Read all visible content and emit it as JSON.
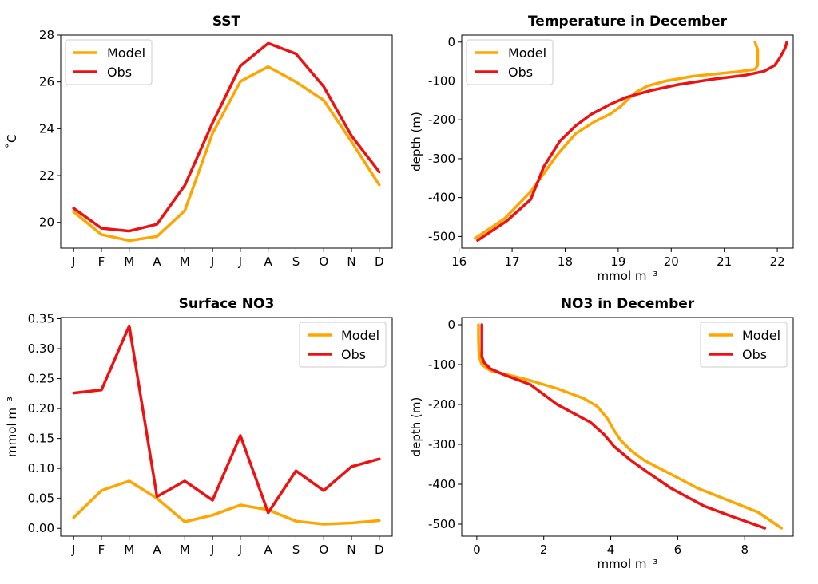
{
  "colors": {
    "model": "#FFA500",
    "obs": "#EE1111"
  },
  "chart_data": [
    {
      "type": "line",
      "title": "SST",
      "xlabel": "",
      "ylabel": "˚C",
      "x": [
        "J",
        "F",
        "M",
        "A",
        "M",
        "J",
        "J",
        "A",
        "S",
        "O",
        "N",
        "D"
      ],
      "ylim": [
        18.9,
        28.0
      ],
      "yticks": [
        "20",
        "22",
        "24",
        "26",
        "28"
      ],
      "legend": "top-left",
      "series": [
        {
          "name": "Model",
          "values": [
            20.45,
            19.48,
            19.22,
            19.4,
            20.5,
            23.8,
            26.02,
            26.65,
            26.0,
            25.22,
            23.45,
            21.6
          ]
        },
        {
          "name": "Obs",
          "values": [
            20.6,
            19.75,
            19.63,
            19.92,
            21.58,
            24.25,
            26.68,
            27.65,
            27.2,
            25.8,
            23.7,
            22.15
          ]
        }
      ]
    },
    {
      "type": "line",
      "title": "Temperature in December",
      "xlabel": "mmol m⁻³",
      "ylabel": "depth (m)",
      "xlim": [
        16.05,
        22.3
      ],
      "ylim": [
        -530,
        18
      ],
      "xticks": [
        "16",
        "17",
        "18",
        "19",
        "20",
        "21",
        "22"
      ],
      "yticks": [
        "0",
        "-100",
        "-200",
        "-300",
        "-400",
        "-500"
      ],
      "legend": "top-left",
      "series": [
        {
          "name": "Model",
          "x": [
            21.58,
            21.63,
            21.63,
            21.58,
            21.2,
            20.4,
            19.9,
            19.55,
            19.35,
            19.2,
            19.05,
            18.85,
            18.55,
            18.2,
            17.85,
            17.35,
            16.85,
            16.3
          ],
          "y": [
            0,
            -20,
            -60,
            -70,
            -77,
            -88,
            -100,
            -113,
            -128,
            -145,
            -165,
            -185,
            -205,
            -235,
            -290,
            -385,
            -455,
            -505
          ]
        },
        {
          "name": "Obs",
          "x": [
            22.18,
            22.15,
            22.05,
            21.95,
            21.75,
            21.4,
            20.8,
            20.1,
            19.6,
            19.15,
            18.85,
            18.5,
            18.2,
            17.9,
            17.6,
            17.35,
            16.9,
            16.35
          ],
          "y": [
            0,
            -15,
            -40,
            -60,
            -75,
            -85,
            -95,
            -110,
            -125,
            -142,
            -160,
            -185,
            -215,
            -255,
            -320,
            -405,
            -460,
            -510
          ]
        }
      ]
    },
    {
      "type": "line",
      "title": "Surface NO3",
      "xlabel": "",
      "ylabel": "mmol m⁻³",
      "x": [
        "J",
        "F",
        "M",
        "A",
        "M",
        "J",
        "J",
        "A",
        "S",
        "O",
        "N",
        "D"
      ],
      "ylim": [
        -0.013,
        0.352
      ],
      "yticks": [
        "0.00",
        "0.05",
        "0.10",
        "0.15",
        "0.20",
        "0.25",
        "0.30",
        "0.35"
      ],
      "legend": "top-right",
      "series": [
        {
          "name": "Model",
          "values": [
            0.018,
            0.063,
            0.079,
            0.05,
            0.011,
            0.022,
            0.039,
            0.031,
            0.012,
            0.007,
            0.009,
            0.013
          ]
        },
        {
          "name": "Obs",
          "values": [
            0.226,
            0.231,
            0.338,
            0.053,
            0.079,
            0.047,
            0.155,
            0.026,
            0.096,
            0.063,
            0.103,
            0.116
          ]
        }
      ]
    },
    {
      "type": "line",
      "title": "NO3 in December",
      "xlabel": "mmol m⁻³",
      "ylabel": "depth (m)",
      "xlim": [
        -0.45,
        9.45
      ],
      "ylim": [
        -530,
        18
      ],
      "xticks": [
        "0",
        "2",
        "4",
        "6",
        "8"
      ],
      "yticks": [
        "0",
        "-100",
        "-200",
        "-300",
        "-400",
        "-500"
      ],
      "legend": "top-right",
      "series": [
        {
          "name": "Model",
          "x": [
            0.05,
            0.05,
            0.07,
            0.15,
            0.4,
            0.9,
            1.6,
            2.4,
            3.2,
            3.6,
            3.9,
            4.1,
            4.3,
            4.6,
            5.0,
            5.8,
            6.6,
            7.5,
            8.4,
            9.1
          ],
          "y": [
            0,
            -40,
            -80,
            -100,
            -115,
            -125,
            -140,
            -160,
            -185,
            -205,
            -235,
            -265,
            -290,
            -315,
            -340,
            -375,
            -410,
            -440,
            -470,
            -510
          ]
        },
        {
          "name": "Obs",
          "x": [
            0.15,
            0.15,
            0.15,
            0.22,
            0.4,
            0.8,
            1.6,
            2.4,
            3.4,
            3.8,
            4.1,
            4.6,
            5.1,
            5.8,
            6.8,
            7.6,
            8.6
          ],
          "y": [
            0,
            -40,
            -80,
            -95,
            -110,
            -125,
            -150,
            -200,
            -245,
            -275,
            -305,
            -340,
            -370,
            -410,
            -455,
            -480,
            -510
          ]
        }
      ]
    }
  ]
}
